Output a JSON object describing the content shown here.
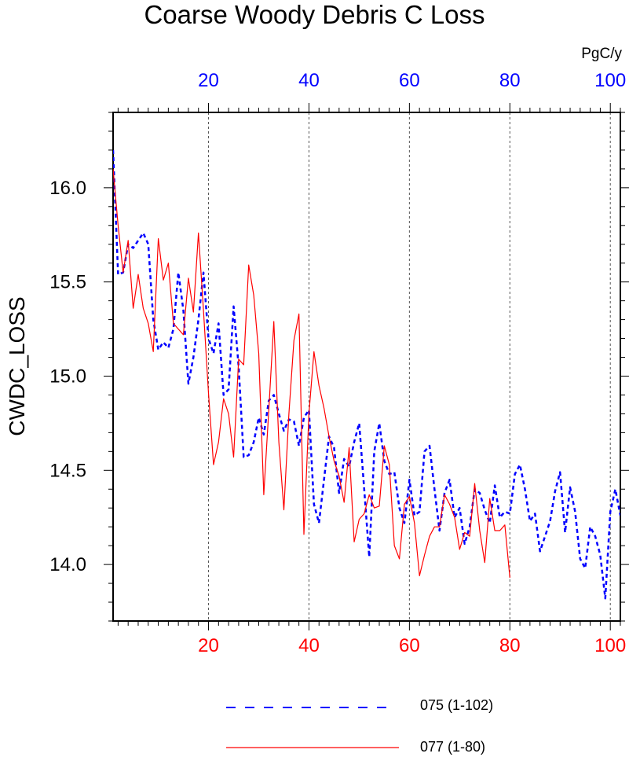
{
  "chart_data": {
    "type": "line",
    "title": "Coarse Woody Debris C Loss",
    "ylabel": "CWDC_LOSS",
    "units_label": "PgC/y",
    "xlim": [
      1,
      102
    ],
    "ylim": [
      13.7,
      16.4
    ],
    "yticks": [
      14.0,
      14.5,
      15.0,
      15.5,
      16.0
    ],
    "ytick_labels": [
      "14.0",
      "14.5",
      "15.0",
      "15.5",
      "16.0"
    ],
    "xticks": [
      20,
      40,
      60,
      80,
      100
    ],
    "xtick_labels": [
      "20",
      "40",
      "60",
      "80",
      "100"
    ],
    "grid": "vertical dashed at major x ticks",
    "legend_position": "bottom",
    "colors": {
      "top_axis": "#0000ff",
      "bottom_axis": "#ff0000"
    },
    "series": [
      {
        "name": "075 (1-102)",
        "color": "#0000ff",
        "style": "dashed",
        "axis": "top",
        "x": [
          1,
          2,
          3,
          4,
          5,
          6,
          7,
          8,
          9,
          10,
          11,
          12,
          13,
          14,
          15,
          16,
          17,
          18,
          19,
          20,
          21,
          22,
          23,
          24,
          25,
          26,
          27,
          28,
          29,
          30,
          31,
          32,
          33,
          34,
          35,
          36,
          37,
          38,
          39,
          40,
          41,
          42,
          43,
          44,
          45,
          46,
          47,
          48,
          49,
          50,
          51,
          52,
          53,
          54,
          55,
          56,
          57,
          58,
          59,
          60,
          61,
          62,
          63,
          64,
          65,
          66,
          67,
          68,
          69,
          70,
          71,
          72,
          73,
          74,
          75,
          76,
          77,
          78,
          79,
          80,
          81,
          82,
          83,
          84,
          85,
          86,
          87,
          88,
          89,
          90,
          91,
          92,
          93,
          94,
          95,
          96,
          97,
          98,
          99,
          100,
          101,
          102
        ],
        "y": [
          16.2,
          15.54,
          15.55,
          15.7,
          15.68,
          15.72,
          15.76,
          15.7,
          15.3,
          15.14,
          15.18,
          15.15,
          15.25,
          15.55,
          15.35,
          14.96,
          15.1,
          15.3,
          15.55,
          15.2,
          15.12,
          15.28,
          14.9,
          14.93,
          15.37,
          15.05,
          14.57,
          14.58,
          14.65,
          14.78,
          14.69,
          14.87,
          14.9,
          14.8,
          14.71,
          14.77,
          14.76,
          14.63,
          14.78,
          14.82,
          14.32,
          14.22,
          14.45,
          14.68,
          14.62,
          14.38,
          14.56,
          14.52,
          14.65,
          14.75,
          14.4,
          14.04,
          14.6,
          14.75,
          14.55,
          14.48,
          14.49,
          14.3,
          14.22,
          14.45,
          14.26,
          14.28,
          14.6,
          14.63,
          14.4,
          14.18,
          14.38,
          14.45,
          14.25,
          14.3,
          14.11,
          14.2,
          14.4,
          14.38,
          14.29,
          14.22,
          14.42,
          14.25,
          14.28,
          14.27,
          14.48,
          14.53,
          14.4,
          14.23,
          14.27,
          14.07,
          14.15,
          14.23,
          14.39,
          14.49,
          14.17,
          14.41,
          14.28,
          14.03,
          13.98,
          14.2,
          14.15,
          14.05,
          13.82,
          14.28,
          14.4,
          14.26
        ]
      },
      {
        "name": "077 (1-80)",
        "color": "#ff0000",
        "style": "solid",
        "axis": "bottom",
        "x": [
          1,
          2,
          3,
          4,
          5,
          6,
          7,
          8,
          9,
          10,
          11,
          12,
          13,
          14,
          15,
          16,
          17,
          18,
          19,
          20,
          21,
          22,
          23,
          24,
          25,
          26,
          27,
          28,
          29,
          30,
          31,
          32,
          33,
          34,
          35,
          36,
          37,
          38,
          39,
          40,
          41,
          42,
          43,
          44,
          45,
          46,
          47,
          48,
          49,
          50,
          51,
          52,
          53,
          54,
          55,
          56,
          57,
          58,
          59,
          60,
          61,
          62,
          63,
          64,
          65,
          66,
          67,
          68,
          69,
          70,
          71,
          72,
          73,
          74,
          75,
          76,
          77,
          78,
          79,
          80
        ],
        "y": [
          16.1,
          15.8,
          15.55,
          15.72,
          15.36,
          15.54,
          15.36,
          15.28,
          15.13,
          15.73,
          15.51,
          15.6,
          15.28,
          15.25,
          15.22,
          15.52,
          15.34,
          15.76,
          15.35,
          14.91,
          14.53,
          14.65,
          14.88,
          14.8,
          14.57,
          15.09,
          15.06,
          15.59,
          15.43,
          15.12,
          14.37,
          14.82,
          15.29,
          14.65,
          14.29,
          14.8,
          15.19,
          15.33,
          14.16,
          14.8,
          15.13,
          14.95,
          14.83,
          14.68,
          14.55,
          14.47,
          14.33,
          14.62,
          14.12,
          14.24,
          14.27,
          14.37,
          14.3,
          14.31,
          14.63,
          14.53,
          14.1,
          14.03,
          14.32,
          14.36,
          14.22,
          13.94,
          14.05,
          14.15,
          14.2,
          14.2,
          14.37,
          14.32,
          14.25,
          14.08,
          14.17,
          14.15,
          14.43,
          14.18,
          14.01,
          14.35,
          14.18,
          14.18,
          14.21,
          13.93
        ]
      }
    ]
  }
}
